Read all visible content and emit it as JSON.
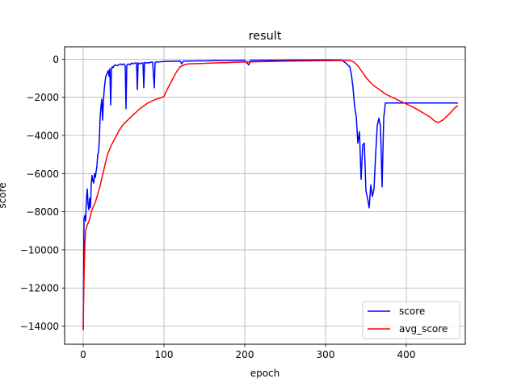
{
  "chart_data": {
    "type": "line",
    "title": "result",
    "xlabel": "epoch",
    "ylabel": "score",
    "xlim": [
      -23,
      473
    ],
    "ylim": [
      -14950,
      650
    ],
    "xticks": [
      0,
      100,
      200,
      300,
      400
    ],
    "yticks": [
      0,
      -2000,
      -4000,
      -6000,
      -8000,
      -10000,
      -12000,
      -14000
    ],
    "grid": true,
    "legend_position": "lower right",
    "series": [
      {
        "name": "score",
        "color": "#0000ff",
        "points": [
          [
            0,
            -14200
          ],
          [
            1,
            -8400
          ],
          [
            2,
            -8200
          ],
          [
            3,
            -8500
          ],
          [
            4,
            -7300
          ],
          [
            5,
            -6800
          ],
          [
            6,
            -7600
          ],
          [
            7,
            -7900
          ],
          [
            8,
            -7300
          ],
          [
            9,
            -7800
          ],
          [
            10,
            -6500
          ],
          [
            11,
            -6100
          ],
          [
            12,
            -6400
          ],
          [
            13,
            -6500
          ],
          [
            14,
            -6000
          ],
          [
            15,
            -6200
          ],
          [
            16,
            -5900
          ],
          [
            17,
            -5600
          ],
          [
            18,
            -5000
          ],
          [
            19,
            -4900
          ],
          [
            20,
            -4200
          ],
          [
            21,
            -3000
          ],
          [
            22,
            -2500
          ],
          [
            23,
            -2100
          ],
          [
            24,
            -3200
          ],
          [
            25,
            -2200
          ],
          [
            26,
            -1600
          ],
          [
            27,
            -1200
          ],
          [
            28,
            -900
          ],
          [
            29,
            -800
          ],
          [
            30,
            -700
          ],
          [
            31,
            -600
          ],
          [
            32,
            -900
          ],
          [
            33,
            -500
          ],
          [
            34,
            -2400
          ],
          [
            35,
            -500
          ],
          [
            36,
            -400
          ],
          [
            37,
            -450
          ],
          [
            38,
            -350
          ],
          [
            40,
            -300
          ],
          [
            42,
            -350
          ],
          [
            44,
            -300
          ],
          [
            46,
            -250
          ],
          [
            48,
            -300
          ],
          [
            50,
            -250
          ],
          [
            52,
            -350
          ],
          [
            53,
            -2600
          ],
          [
            54,
            -300
          ],
          [
            56,
            -250
          ],
          [
            58,
            -300
          ],
          [
            60,
            -200
          ],
          [
            62,
            -250
          ],
          [
            64,
            -200
          ],
          [
            66,
            -200
          ],
          [
            67,
            -1600
          ],
          [
            68,
            -200
          ],
          [
            70,
            -250
          ],
          [
            72,
            -200
          ],
          [
            74,
            -200
          ],
          [
            75,
            -1500
          ],
          [
            76,
            -180
          ],
          [
            78,
            -200
          ],
          [
            80,
            -180
          ],
          [
            82,
            -200
          ],
          [
            84,
            -150
          ],
          [
            86,
            -160
          ],
          [
            88,
            -1500
          ],
          [
            89,
            -170
          ],
          [
            90,
            -150
          ],
          [
            95,
            -140
          ],
          [
            100,
            -120
          ],
          [
            110,
            -110
          ],
          [
            120,
            -100
          ],
          [
            122,
            -250
          ],
          [
            124,
            -100
          ],
          [
            130,
            -100
          ],
          [
            140,
            -90
          ],
          [
            150,
            -90
          ],
          [
            160,
            -80
          ],
          [
            170,
            -80
          ],
          [
            180,
            -80
          ],
          [
            190,
            -70
          ],
          [
            200,
            -70
          ],
          [
            205,
            -300
          ],
          [
            207,
            -70
          ],
          [
            220,
            -60
          ],
          [
            240,
            -60
          ],
          [
            260,
            -50
          ],
          [
            280,
            -50
          ],
          [
            300,
            -40
          ],
          [
            320,
            -50
          ],
          [
            325,
            -200
          ],
          [
            330,
            -400
          ],
          [
            332,
            -800
          ],
          [
            334,
            -1500
          ],
          [
            336,
            -2500
          ],
          [
            338,
            -3000
          ],
          [
            340,
            -4400
          ],
          [
            342,
            -3800
          ],
          [
            344,
            -6300
          ],
          [
            346,
            -4500
          ],
          [
            348,
            -4400
          ],
          [
            350,
            -6900
          ],
          [
            352,
            -7300
          ],
          [
            354,
            -7800
          ],
          [
            356,
            -6600
          ],
          [
            358,
            -7200
          ],
          [
            360,
            -6800
          ],
          [
            362,
            -5000
          ],
          [
            364,
            -3500
          ],
          [
            366,
            -3100
          ],
          [
            368,
            -3500
          ],
          [
            370,
            -6700
          ],
          [
            372,
            -3100
          ],
          [
            374,
            -2300
          ],
          [
            376,
            -2300
          ],
          [
            400,
            -2300
          ],
          [
            440,
            -2300
          ],
          [
            464,
            -2300
          ]
        ]
      },
      {
        "name": "avg_score",
        "color": "#ff0000",
        "points": [
          [
            0,
            -14200
          ],
          [
            1,
            -11500
          ],
          [
            2,
            -9800
          ],
          [
            3,
            -9000
          ],
          [
            5,
            -8700
          ],
          [
            8,
            -8400
          ],
          [
            10,
            -8000
          ],
          [
            15,
            -7500
          ],
          [
            20,
            -6800
          ],
          [
            25,
            -5900
          ],
          [
            30,
            -5000
          ],
          [
            35,
            -4500
          ],
          [
            40,
            -4100
          ],
          [
            45,
            -3700
          ],
          [
            50,
            -3400
          ],
          [
            55,
            -3200
          ],
          [
            60,
            -3000
          ],
          [
            65,
            -2800
          ],
          [
            70,
            -2600
          ],
          [
            75,
            -2450
          ],
          [
            80,
            -2300
          ],
          [
            85,
            -2200
          ],
          [
            90,
            -2100
          ],
          [
            95,
            -2050
          ],
          [
            100,
            -1950
          ],
          [
            105,
            -1500
          ],
          [
            110,
            -1100
          ],
          [
            115,
            -700
          ],
          [
            120,
            -400
          ],
          [
            125,
            -300
          ],
          [
            130,
            -250
          ],
          [
            140,
            -230
          ],
          [
            150,
            -220
          ],
          [
            160,
            -200
          ],
          [
            170,
            -190
          ],
          [
            180,
            -180
          ],
          [
            190,
            -160
          ],
          [
            200,
            -150
          ],
          [
            220,
            -130
          ],
          [
            240,
            -110
          ],
          [
            260,
            -100
          ],
          [
            280,
            -90
          ],
          [
            300,
            -80
          ],
          [
            320,
            -70
          ],
          [
            330,
            -70
          ],
          [
            335,
            -150
          ],
          [
            340,
            -350
          ],
          [
            345,
            -650
          ],
          [
            350,
            -950
          ],
          [
            355,
            -1200
          ],
          [
            360,
            -1400
          ],
          [
            365,
            -1550
          ],
          [
            370,
            -1700
          ],
          [
            375,
            -1850
          ],
          [
            380,
            -1950
          ],
          [
            390,
            -2150
          ],
          [
            400,
            -2350
          ],
          [
            410,
            -2550
          ],
          [
            420,
            -2800
          ],
          [
            430,
            -3050
          ],
          [
            435,
            -3250
          ],
          [
            440,
            -3320
          ],
          [
            445,
            -3200
          ],
          [
            450,
            -3000
          ],
          [
            455,
            -2800
          ],
          [
            460,
            -2550
          ],
          [
            464,
            -2450
          ]
        ]
      }
    ]
  }
}
